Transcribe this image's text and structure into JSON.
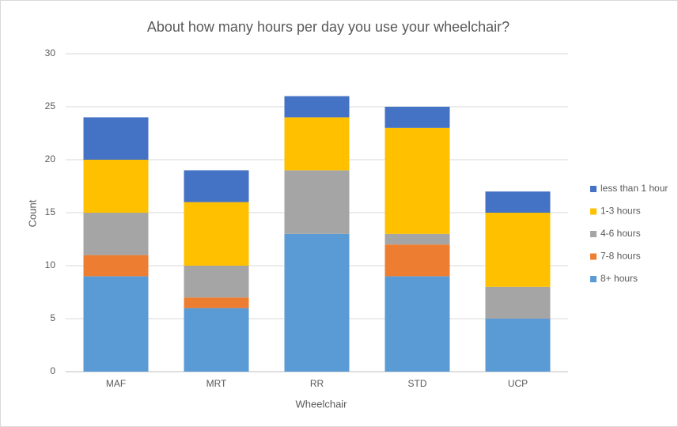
{
  "chart_data": {
    "type": "stacked_bar",
    "title": "About how many hours per day you use your wheelchair?",
    "xlabel": "Wheelchair",
    "ylabel": "Count",
    "categories": [
      "MAF",
      "MRT",
      "RR",
      "STD",
      "UCP"
    ],
    "series": [
      {
        "name": "8+ hours",
        "color": "#5b9bd5",
        "values": [
          9,
          6,
          13,
          9,
          5
        ]
      },
      {
        "name": "7-8 hours",
        "color": "#ed7d31",
        "values": [
          2,
          1,
          0,
          3,
          0
        ]
      },
      {
        "name": "4-6 hours",
        "color": "#a5a5a5",
        "values": [
          4,
          3,
          6,
          1,
          3
        ]
      },
      {
        "name": "1-3 hours",
        "color": "#ffc000",
        "values": [
          5,
          6,
          5,
          10,
          7
        ]
      },
      {
        "name": "less than 1 hour",
        "color": "#4472c4",
        "values": [
          4,
          3,
          2,
          2,
          2
        ]
      }
    ],
    "ylim": [
      0,
      30
    ],
    "yticks": [
      0,
      5,
      10,
      15,
      20,
      25,
      30
    ],
    "grid": true,
    "legend": "right"
  }
}
